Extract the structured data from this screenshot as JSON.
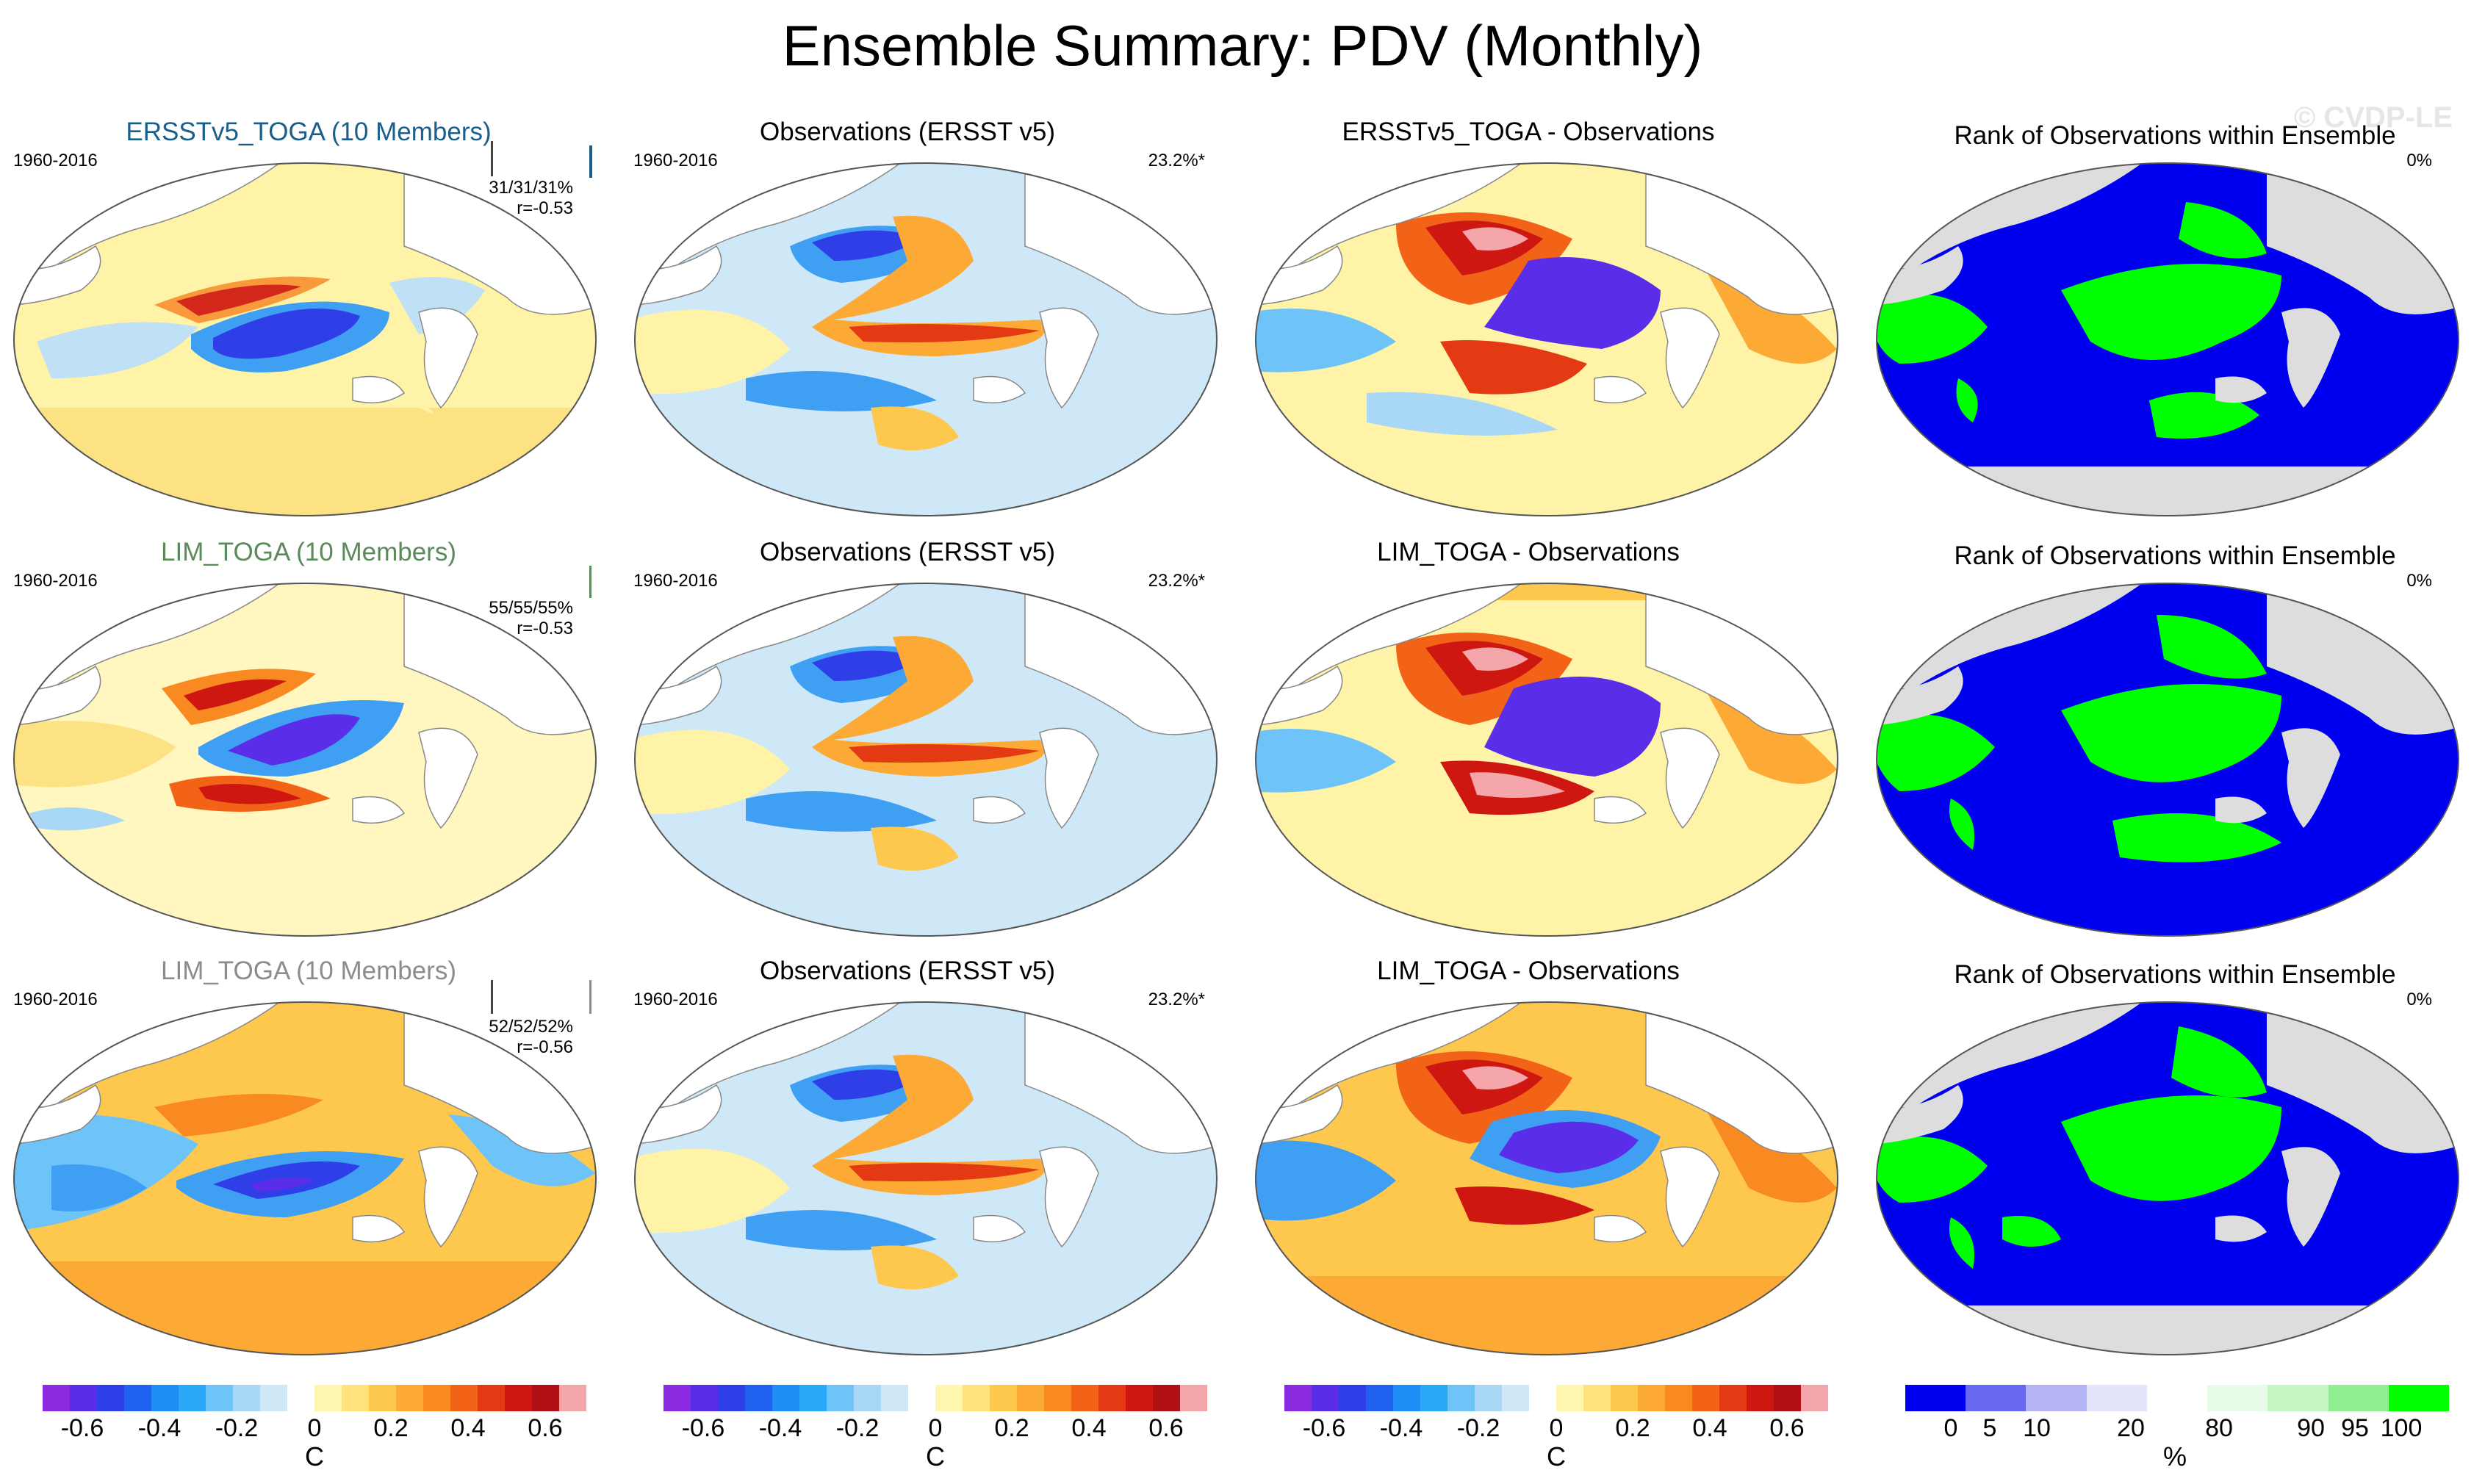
{
  "title": "Ensemble Summary: PDV (Monthly)",
  "watermark": "© CVDP-LE",
  "colors": {
    "title_row1": "#1a5f8a",
    "title_row2": "#5b8a5b",
    "title_row3": "#8c8c8c",
    "rank_blue": "#0000f0",
    "rank_green": "#00ff00",
    "land_gray": "#dddddd"
  },
  "rows": [
    {
      "ensemble": {
        "title": "ERSSTv5_TOGA (10 Members)",
        "period": "1960-2016",
        "stats": "31/31/31%",
        "corr": "r=-0.53"
      },
      "obs": {
        "title": "Observations (ERSST v5)",
        "period": "1960-2016",
        "pct": "23.2%*"
      },
      "diff": {
        "title": "ERSSTv5_TOGA - Observations"
      },
      "rank": {
        "title": "Rank of Observations within Ensemble",
        "pct": "0%"
      }
    },
    {
      "ensemble": {
        "title": "LIM_TOGA (10 Members)",
        "period": "1960-2016",
        "stats": "55/55/55%",
        "corr": "r=-0.53"
      },
      "obs": {
        "title": "Observations (ERSST v5)",
        "period": "1960-2016",
        "pct": "23.2%*"
      },
      "diff": {
        "title": "LIM_TOGA - Observations"
      },
      "rank": {
        "title": "Rank of Observations within Ensemble",
        "pct": "0%"
      }
    },
    {
      "ensemble": {
        "title": "LIM_TOGA (10 Members)",
        "period": "1960-2016",
        "stats": "52/52/52%",
        "corr": "r=-0.56"
      },
      "obs": {
        "title": "Observations (ERSST v5)",
        "period": "1960-2016",
        "pct": "23.2%*"
      },
      "diff": {
        "title": "LIM_TOGA - Observations"
      },
      "rank": {
        "title": "Rank of Observations within Ensemble",
        "pct": "0%"
      }
    }
  ],
  "colorbar_temp": {
    "ticks": [
      "-0.6",
      "-0.4",
      "-0.2",
      "0",
      "0.2",
      "0.4",
      "0.6"
    ],
    "unit": "C",
    "colors": [
      "#8a2be2",
      "#5a2ee8",
      "#2f3fe8",
      "#1f62f0",
      "#1e8ef5",
      "#2aa8f7",
      "#6ec3f9",
      "#a9d8f7",
      "#cfe8f7",
      "#ffffff",
      "#fff6b0",
      "#ffe27a",
      "#fec74e",
      "#fca935",
      "#f98a22",
      "#f26318",
      "#e33a14",
      "#cf1712",
      "#b00f13",
      "#f4a6aa"
    ]
  },
  "colorbar_rank": {
    "ticks": [
      "0",
      "5",
      "10",
      "20",
      "80",
      "90",
      "95",
      "100"
    ],
    "unit": "%",
    "colors": [
      "#0000f0",
      "#6767f0",
      "#b4b4f5",
      "#e4e4fb",
      "#ffffff",
      "#e8fbe8",
      "#c4f7c4",
      "#90f090",
      "#00ff00"
    ]
  }
}
